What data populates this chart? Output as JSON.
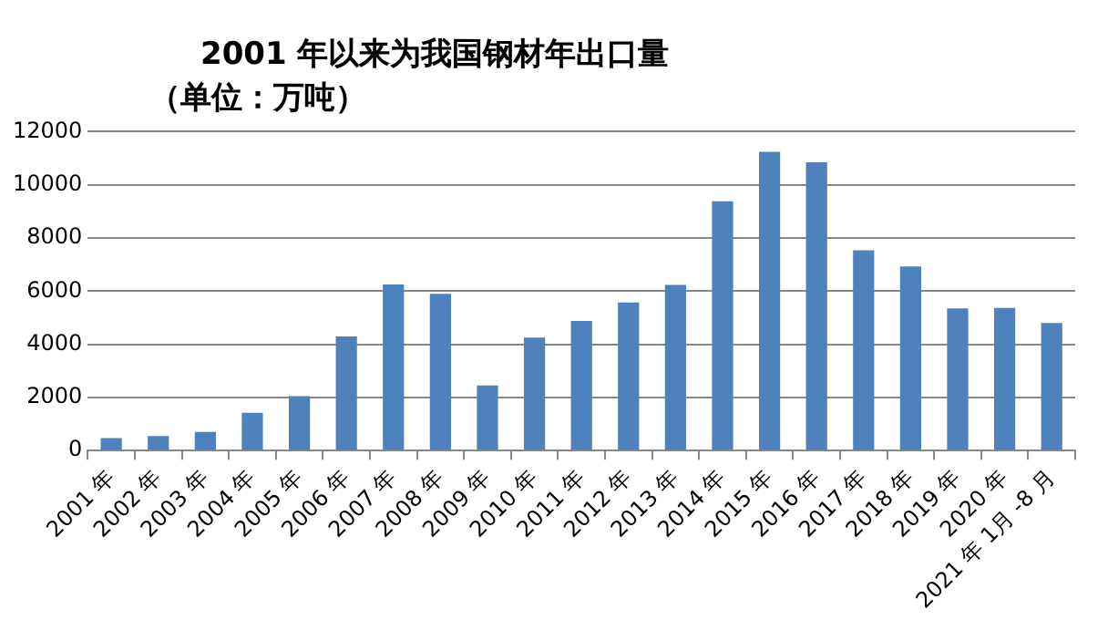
{
  "chart_data": {
    "type": "bar",
    "title": "2001 年以来为我国钢材年出口量",
    "subtitle": "（单位：万吨）",
    "categories": [
      "2001 年",
      "2002 年",
      "2003 年",
      "2004 年",
      "2005 年",
      "2006 年",
      "2007 年",
      "2008 年",
      "2009 年",
      "2010 年",
      "2011 年",
      "2012 年",
      "2013 年",
      "2014 年",
      "2015 年",
      "2016 年",
      "2017 年",
      "2018 年",
      "2019 年",
      "2020 年",
      "2021 年 1月 -8 月"
    ],
    "values": [
      470,
      550,
      700,
      1420,
      2050,
      4300,
      6250,
      5900,
      2450,
      4250,
      4880,
      5570,
      6230,
      9380,
      11240,
      10850,
      7540,
      6930,
      5350,
      5370,
      4800
    ],
    "color": "#4f81bd",
    "ylim": [
      0,
      12000
    ],
    "yticks": [
      0,
      2000,
      4000,
      6000,
      8000,
      10000,
      12000
    ],
    "grid": "y",
    "legend": false
  }
}
